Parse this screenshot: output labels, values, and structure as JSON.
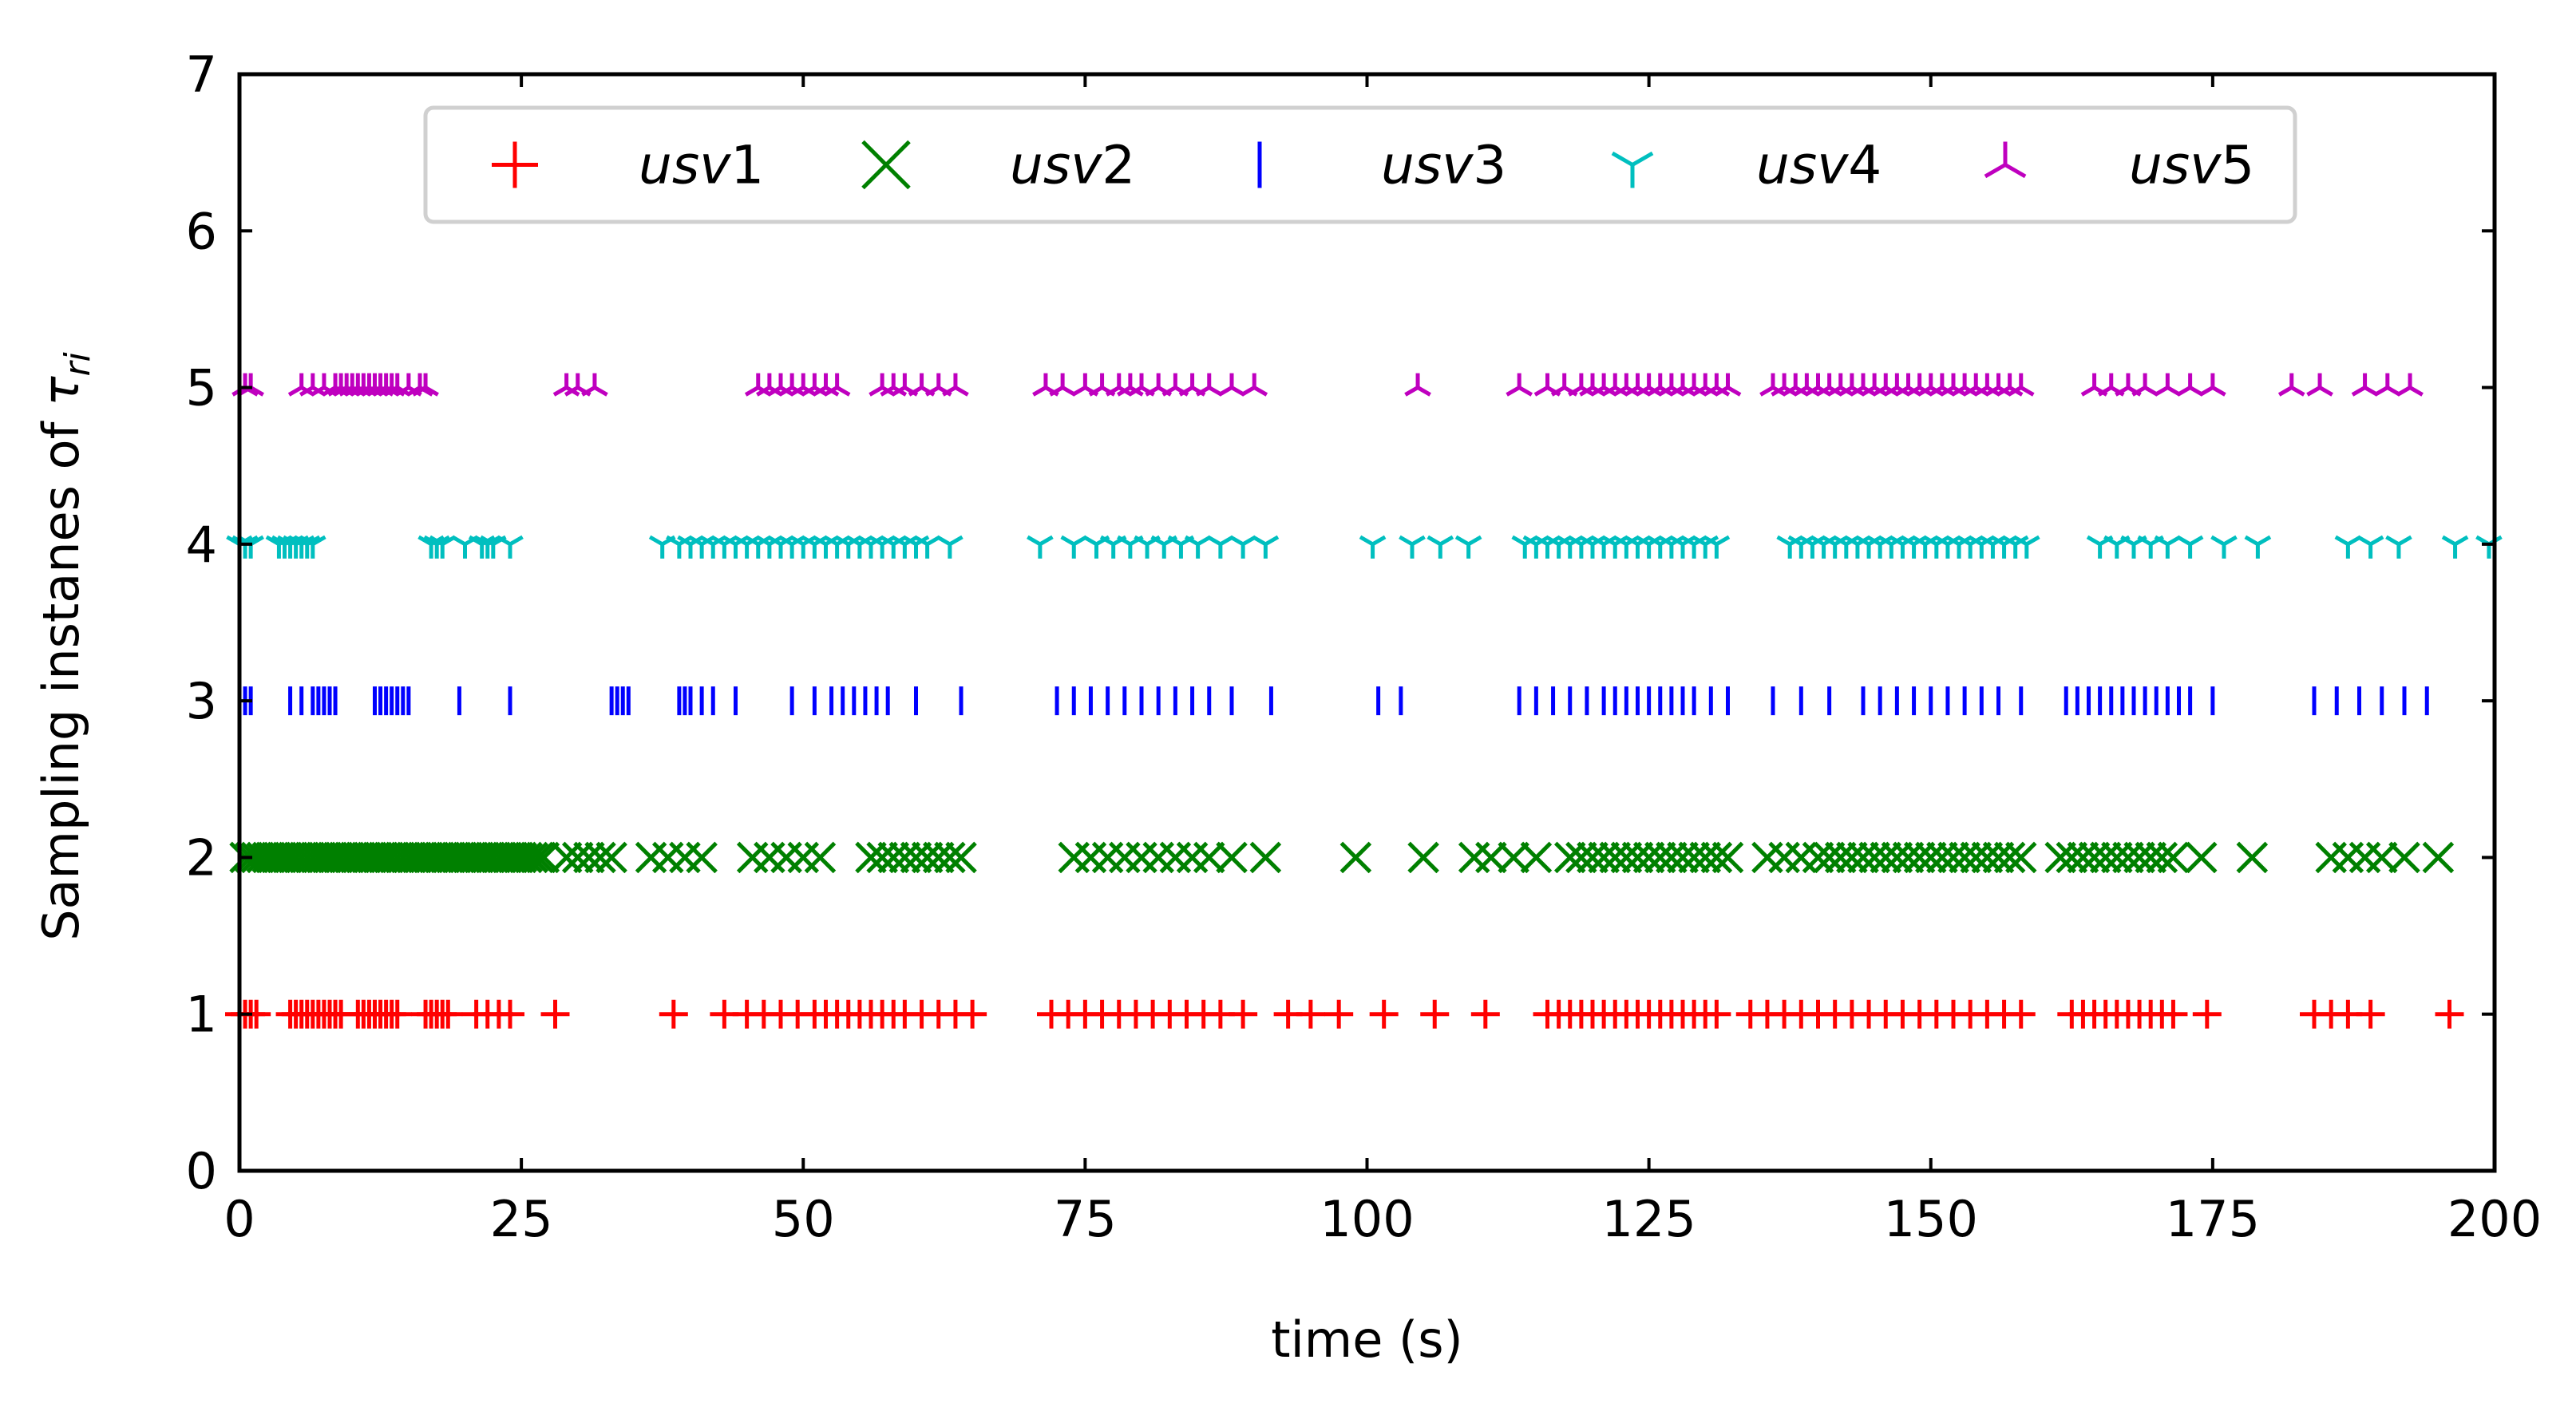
{
  "chart_data": {
    "type": "scatter",
    "xlabel": "time (s)",
    "ylabel_main": "Sampling instanes of ",
    "ylabel_symbol": "τ",
    "ylabel_sub": "ri",
    "xlim": [
      0,
      200
    ],
    "ylim": [
      0,
      7
    ],
    "xticks": [
      0,
      25,
      50,
      75,
      100,
      125,
      150,
      175,
      200
    ],
    "yticks": [
      0,
      1,
      2,
      3,
      4,
      5,
      6,
      7
    ],
    "grid": false,
    "legend_position": "top-center",
    "series": [
      {
        "name": "usv1",
        "name_italic": "usv",
        "name_num": "1",
        "marker": "plus",
        "color": "#ff0000",
        "y": 1,
        "x": [
          0,
          0.5,
          1,
          1.5,
          4.5,
          5,
          5.5,
          6,
          6.5,
          7,
          7.5,
          8,
          8.5,
          9,
          10.5,
          11,
          11.5,
          12,
          12.5,
          13,
          13.5,
          14,
          16.5,
          17,
          17.5,
          18,
          18.5,
          21,
          22,
          23,
          24,
          28,
          38.5,
          43,
          45,
          46.5,
          48,
          49.5,
          51,
          52,
          53,
          54,
          55,
          56,
          57,
          58,
          59,
          60.5,
          62,
          63.5,
          65,
          72,
          73.5,
          75,
          76.5,
          78,
          79.5,
          81,
          82.5,
          84,
          85.5,
          87,
          89,
          93,
          95,
          97.5,
          101.5,
          106,
          110.5,
          116,
          117,
          118,
          119,
          120,
          121,
          122,
          123,
          124,
          125,
          126,
          127,
          128,
          129,
          130,
          131,
          134,
          135.5,
          137,
          138.5,
          140,
          141.5,
          143,
          144.5,
          146,
          147.5,
          149,
          150.5,
          152,
          153.5,
          155,
          156.5,
          158,
          162.5,
          163.5,
          164.5,
          165.5,
          166.5,
          167.5,
          168.5,
          169.5,
          170.5,
          171.5,
          174.5,
          184,
          185.5,
          187,
          189,
          196
        ]
      },
      {
        "name": "usv2",
        "name_italic": "usv",
        "name_num": "2",
        "marker": "x",
        "color": "#008000",
        "y": 2,
        "x": [
          0.5,
          1,
          1.5,
          2,
          2.5,
          3,
          3.5,
          4,
          4.5,
          5,
          5.5,
          6,
          6.5,
          7,
          7.5,
          8,
          8.5,
          9,
          9.5,
          10,
          10.5,
          11,
          11.5,
          12,
          12.5,
          13,
          13.5,
          14,
          14.5,
          15,
          15.5,
          16,
          16.5,
          17,
          17.5,
          18,
          18.5,
          19,
          19.5,
          20,
          20.5,
          21,
          21.5,
          22,
          22.5,
          23,
          23.5,
          24,
          24.5,
          25,
          25.5,
          26,
          26.5,
          27,
          29,
          30,
          31,
          32,
          33,
          36.5,
          38,
          39.5,
          41,
          45.5,
          47,
          48.5,
          50,
          51.5,
          56,
          57,
          58,
          59,
          60,
          61,
          62,
          63,
          64,
          74,
          75.5,
          77,
          78.5,
          80,
          81.5,
          83,
          84.5,
          86,
          88,
          91,
          99,
          105,
          109.5,
          111,
          113,
          115,
          118,
          119,
          120,
          121,
          122,
          123,
          124,
          125,
          126,
          127,
          128,
          129,
          130,
          131,
          132,
          135.5,
          137,
          138.5,
          140,
          141,
          142,
          143,
          144,
          145,
          146,
          147,
          148,
          149,
          150,
          151,
          152,
          153,
          154,
          155,
          156,
          157,
          158,
          161.5,
          162.5,
          163.5,
          164.5,
          165.5,
          166.5,
          167.5,
          168.5,
          169.5,
          170.5,
          171.5,
          174,
          178.5,
          185.5,
          187,
          188.5,
          190,
          192,
          195
        ]
      },
      {
        "name": "usv3",
        "name_italic": "usv",
        "name_num": "3",
        "marker": "vline",
        "color": "#0000ff",
        "y": 3,
        "x": [
          0,
          0.5,
          1,
          4.5,
          5.5,
          6.5,
          7,
          7.5,
          8,
          8.5,
          12,
          12.5,
          13,
          13.5,
          14,
          14.5,
          15,
          19.5,
          24,
          33,
          33.5,
          34,
          34.5,
          39,
          39.5,
          40,
          41,
          42,
          44,
          49,
          51,
          52.5,
          53.5,
          54.5,
          55.5,
          56.5,
          57.5,
          60,
          64,
          72.5,
          74,
          75.5,
          77,
          78.5,
          80,
          81.5,
          83,
          84.5,
          86,
          88,
          91.5,
          101,
          103,
          113.5,
          115,
          116.5,
          118,
          119.5,
          121,
          122,
          123,
          124,
          125,
          126,
          127,
          128,
          129,
          130.5,
          132,
          136,
          138.5,
          141,
          144,
          145.5,
          147,
          148.5,
          150,
          151.5,
          153,
          154.5,
          156,
          158,
          162,
          163,
          164,
          165,
          166,
          167,
          168,
          169,
          170,
          171,
          172,
          173,
          175,
          184,
          186,
          188,
          190,
          192,
          194
        ]
      },
      {
        "name": "usv4",
        "name_italic": "usv",
        "name_num": "4",
        "marker": "tri_down",
        "color": "#00bfbf",
        "y": 4,
        "x": [
          0,
          0.5,
          1,
          3.5,
          4,
          4.5,
          5,
          5.5,
          6,
          6.5,
          17,
          17.5,
          18,
          20,
          21.5,
          22,
          22.5,
          24,
          37.5,
          39,
          40,
          41,
          42,
          43,
          44,
          45,
          46,
          47,
          48,
          49,
          50,
          51,
          52,
          53,
          54,
          55,
          56,
          57,
          58,
          59,
          60,
          61,
          63,
          71,
          74,
          76,
          77.5,
          79,
          80.5,
          82,
          83.5,
          85,
          87,
          89,
          91,
          100.5,
          104,
          106.5,
          109,
          114,
          115,
          116,
          117,
          118,
          119,
          120,
          121,
          122,
          123,
          124,
          125,
          126,
          127,
          128,
          129,
          130,
          131,
          137.5,
          138.5,
          139.5,
          140.5,
          141.5,
          142.5,
          143.5,
          144.5,
          145.5,
          146.5,
          147.5,
          148.5,
          149.5,
          150.5,
          151.5,
          152.5,
          153.5,
          154.5,
          155.5,
          156.5,
          157.5,
          158.5,
          165,
          166.5,
          168,
          169.5,
          171,
          173,
          176,
          179,
          187,
          189,
          191.5,
          196.5,
          199.5
        ]
      },
      {
        "name": "usv5",
        "name_italic": "usv",
        "name_num": "5",
        "marker": "tri_up",
        "color": "#bf00bf",
        "y": 5,
        "x": [
          0.5,
          1,
          5.5,
          6.5,
          7.5,
          8.5,
          9,
          9.5,
          10,
          10.5,
          11,
          11.5,
          12,
          12.5,
          13,
          13.5,
          14,
          15,
          16,
          16.5,
          29,
          30,
          31.5,
          46,
          47,
          48,
          49,
          50,
          51,
          52,
          53,
          57,
          58,
          59,
          60.5,
          62,
          63.5,
          71.5,
          73,
          75,
          76.5,
          78,
          79,
          80,
          81.5,
          83,
          84.5,
          86,
          88,
          90,
          104.5,
          113.5,
          116,
          117.5,
          119,
          120,
          121,
          122,
          123,
          124,
          125,
          126,
          127,
          128,
          129,
          130,
          131,
          132,
          136,
          137,
          138,
          139,
          140,
          141,
          142,
          143,
          144,
          145,
          146,
          147,
          148,
          149,
          150,
          151,
          152,
          153,
          154,
          155,
          156,
          157,
          158,
          164.5,
          166,
          167.5,
          169,
          171,
          173,
          175,
          182,
          184.5,
          188.5,
          190.5,
          192.5
        ]
      }
    ]
  },
  "colors": {
    "axes": "#000000",
    "legend_border": "#d0d0d0",
    "background": "#ffffff"
  }
}
